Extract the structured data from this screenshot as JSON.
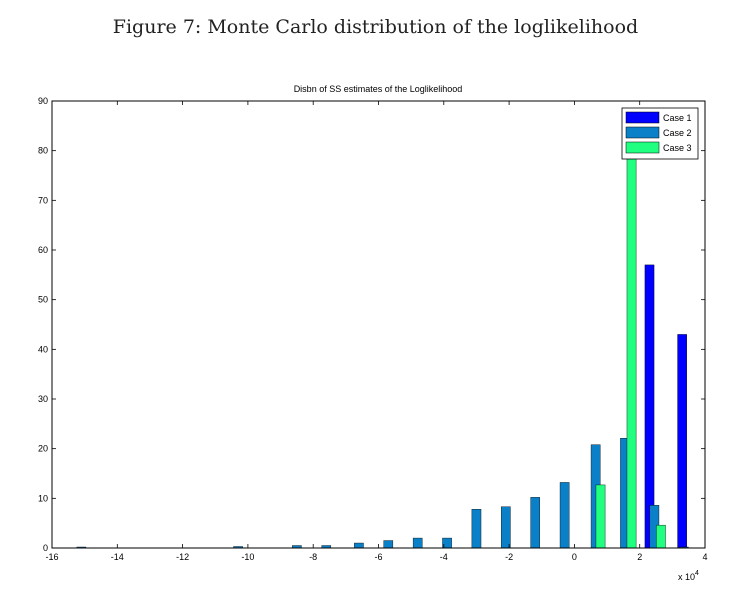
{
  "figure_caption": "Figure 7: Monte Carlo distribution of the loglikelihood",
  "colors": {
    "case1": "#0000ff",
    "case2": "#0a80c8",
    "case3": "#20ff80",
    "axis": "#000000"
  },
  "chart_data": {
    "type": "bar",
    "title": "Disbn of SS estimates of the Loglikelihood",
    "xlabel": "",
    "ylabel": "",
    "x_multiplier": "x 10",
    "x_multiplier_exp": "4",
    "xlim": [
      -16,
      4
    ],
    "ylim": [
      0,
      90
    ],
    "xticks": [
      -16,
      -14,
      -12,
      -10,
      -8,
      -6,
      -4,
      -2,
      0,
      2,
      4
    ],
    "yticks": [
      0,
      10,
      20,
      30,
      40,
      50,
      60,
      70,
      80,
      90
    ],
    "grid": false,
    "legend_position": "top-right",
    "bar_width": 0.28,
    "series": [
      {
        "name": "Case 1",
        "color": "#0000ff",
        "x": [
          2.3,
          3.3
        ],
        "values": [
          57,
          43
        ]
      },
      {
        "name": "Case 2",
        "color": "#0a80c8",
        "x": [
          -15.1,
          -10.3,
          -8.5,
          -7.6,
          -6.6,
          -5.7,
          -4.8,
          -3.9,
          -3.0,
          -2.1,
          -1.2,
          -0.3,
          0.65,
          1.55,
          2.45,
          3.35
        ],
        "values": [
          0.2,
          0.3,
          0.5,
          0.5,
          1,
          1.5,
          2,
          2,
          7.8,
          8.3,
          10.2,
          13.2,
          20.8,
          22.1,
          8.6,
          0.2
        ]
      },
      {
        "name": "Case 3",
        "color": "#20ff80",
        "x": [
          0.8,
          1.75,
          2.65
        ],
        "values": [
          12.7,
          82,
          4.6
        ]
      }
    ]
  }
}
